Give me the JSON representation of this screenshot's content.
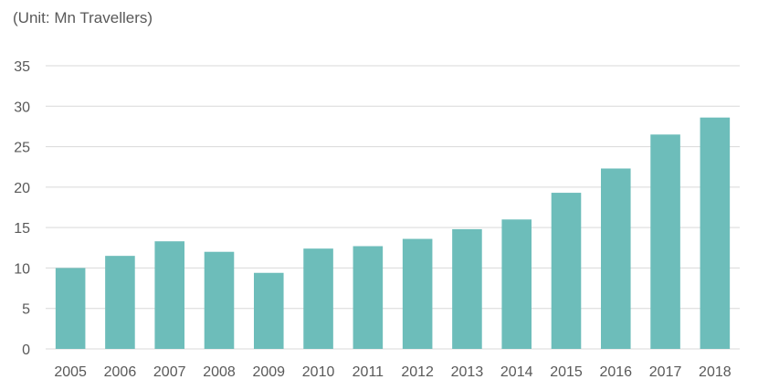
{
  "chart_data": {
    "type": "bar",
    "title": "",
    "unit_label": "(Unit: Mn Travellers)",
    "xlabel": "",
    "ylabel": "",
    "categories": [
      "2005",
      "2006",
      "2007",
      "2008",
      "2009",
      "2010",
      "2011",
      "2012",
      "2013",
      "2014",
      "2015",
      "2016",
      "2017",
      "2018"
    ],
    "values": [
      10.0,
      11.5,
      13.3,
      12.0,
      9.4,
      12.4,
      12.7,
      13.6,
      14.8,
      16.0,
      19.3,
      22.3,
      26.5,
      28.6
    ],
    "ylim": [
      0,
      35
    ],
    "yticks": [
      0,
      5,
      10,
      15,
      20,
      25,
      30,
      35
    ],
    "grid": true,
    "legend": "none",
    "colors": {
      "bar": "#6dbdba",
      "grid": "#d9d9d9",
      "text": "#595959"
    }
  }
}
